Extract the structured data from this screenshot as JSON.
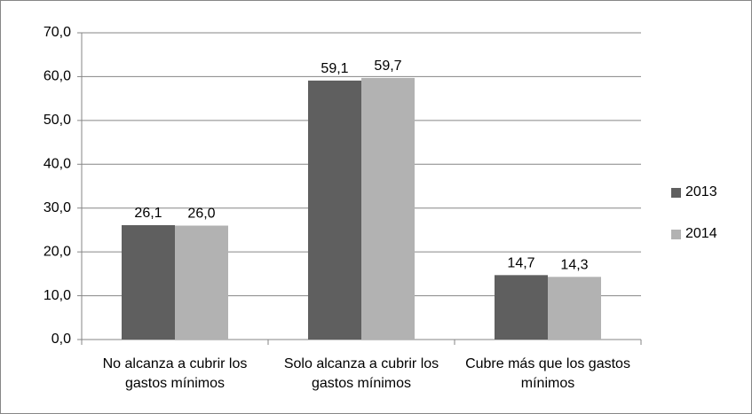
{
  "chart_data": {
    "type": "bar",
    "categories": [
      "No alcanza a cubrir los gastos mínimos",
      "Solo alcanza a cubrir los gastos mínimos",
      "Cubre más que los gastos mínimos"
    ],
    "series": [
      {
        "name": "2013",
        "color": "#5f5f5f",
        "values": [
          26.1,
          59.1,
          14.7
        ],
        "value_labels": [
          "26,1",
          "59,1",
          "14,7"
        ]
      },
      {
        "name": "2014",
        "color": "#b2b2b2",
        "values": [
          26.0,
          59.7,
          14.3
        ],
        "value_labels": [
          "26,0",
          "59,7",
          "14,3"
        ]
      }
    ],
    "ylim": [
      0,
      70
    ],
    "yticks": [
      {
        "value": 0,
        "label": "0,0"
      },
      {
        "value": 10,
        "label": "10,0"
      },
      {
        "value": 20,
        "label": "20,0"
      },
      {
        "value": 30,
        "label": "30,0"
      },
      {
        "value": 40,
        "label": "40,0"
      },
      {
        "value": 50,
        "label": "50,0"
      },
      {
        "value": 60,
        "label": "60,0"
      },
      {
        "value": 70,
        "label": "70,0"
      }
    ],
    "grid": true,
    "legend": "right"
  }
}
